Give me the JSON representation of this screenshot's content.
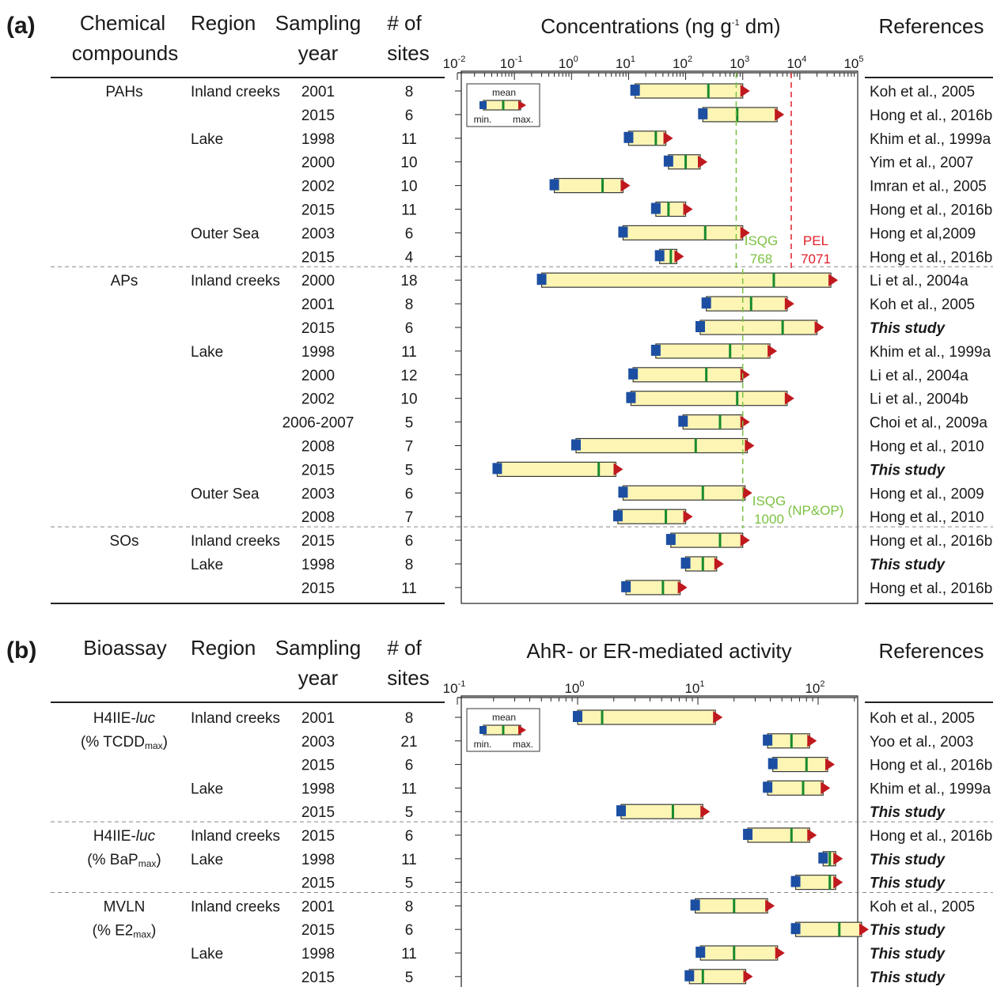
{
  "panel_a": {
    "label": "(a)",
    "headers": {
      "compounds_1": "Chemical",
      "compounds_2": "compounds",
      "region": "Region",
      "year_1": "Sampling",
      "year_2": "year",
      "sites_1": "# of",
      "sites_2": "sites",
      "axis_title": "Concentrations (ng g",
      "axis_title_sup": "-1",
      "axis_title_end": " dm)",
      "references": "References"
    },
    "axis_ticks": [
      {
        "base": "10",
        "exp": "-2"
      },
      {
        "base": "10",
        "exp": "-1"
      },
      {
        "base": "10",
        "exp": "0"
      },
      {
        "base": "10",
        "exp": "1"
      },
      {
        "base": "10",
        "exp": "2"
      },
      {
        "base": "10",
        "exp": "3"
      },
      {
        "base": "10",
        "exp": "4"
      },
      {
        "base": "10",
        "exp": "5"
      }
    ],
    "guides": {
      "isqg_pah_label": "ISQG",
      "isqg_pah_value": "768",
      "pel_label": "PEL",
      "pel_value": "7071",
      "isqg_ap_label": "ISQG",
      "isqg_ap_value": "1000",
      "isqg_ap_note": "(NP&OP)"
    },
    "legend": {
      "mean": "mean",
      "min": "min.",
      "max": "max."
    }
  },
  "panel_b": {
    "label": "(b)",
    "headers": {
      "bioassay": "Bioassay",
      "region": "Region",
      "year_1": "Sampling",
      "year_2": "year",
      "sites_1": "# of",
      "sites_2": "sites",
      "axis_title": "AhR- or ER-mediated activity",
      "references": "References"
    },
    "axis_ticks": [
      {
        "base": "10",
        "exp": "-1"
      },
      {
        "base": "10",
        "exp": "0"
      },
      {
        "base": "10",
        "exp": "1"
      },
      {
        "base": "10",
        "exp": "2"
      }
    ],
    "legend": {
      "mean": "mean",
      "min": "min.",
      "max": "max."
    }
  },
  "chart_data": [
    {
      "type": "range",
      "title": "Concentrations (ng g-1 dm)",
      "xscale": "log",
      "xlim": [
        0.01,
        100000
      ],
      "reference_lines": [
        {
          "label": "ISQG 768",
          "value": 768,
          "color": "#7cc242",
          "applies_to": "PAHs"
        },
        {
          "label": "PEL 7071",
          "value": 7071,
          "color": "#e0202a",
          "applies_to": "PAHs"
        },
        {
          "label": "ISQG 1000 (NP&OP)",
          "value": 1000,
          "color": "#7cc242",
          "applies_to": "APs"
        }
      ],
      "groups": [
        {
          "name": "PAHs",
          "rows": [
            {
              "region": "Inland creeks",
              "year": "2001",
              "sites": "8",
              "min": 13,
              "mean": 250,
              "max": 1000,
              "ref": "Koh et al., 2005",
              "bold": false
            },
            {
              "region": "",
              "year": "2015",
              "sites": "6",
              "min": 200,
              "mean": 800,
              "max": 4000,
              "ref": "Hong et al., 2016b",
              "bold": false
            },
            {
              "region": "Lake",
              "year": "1998",
              "sites": "11",
              "min": 10,
              "mean": 30,
              "max": 45,
              "ref": "Khim et al., 1999a",
              "bold": false
            },
            {
              "region": "",
              "year": "2000",
              "sites": "10",
              "min": 50,
              "mean": 100,
              "max": 180,
              "ref": "Yim et al., 2007",
              "bold": false
            },
            {
              "region": "",
              "year": "2002",
              "sites": "10",
              "min": 0.5,
              "mean": 3.5,
              "max": 8,
              "ref": "Imran et al., 2005",
              "bold": false
            },
            {
              "region": "",
              "year": "2015",
              "sites": "11",
              "min": 30,
              "mean": 50,
              "max": 100,
              "ref": "Hong et al., 2016b",
              "bold": false
            },
            {
              "region": "Outer Sea",
              "year": "2003",
              "sites": "6",
              "min": 8,
              "mean": 220,
              "max": 1000,
              "ref": "Hong et al,2009",
              "bold": false
            },
            {
              "region": "",
              "year": "2015",
              "sites": "4",
              "min": 35,
              "mean": 55,
              "max": 70,
              "ref": "Hong et al., 2016b",
              "bold": false
            }
          ]
        },
        {
          "name": "APs",
          "rows": [
            {
              "region": "Inland creeks",
              "year": "2000",
              "sites": "18",
              "min": 0.3,
              "mean": 3500,
              "max": 35000,
              "ref": "Li et al., 2004a",
              "bold": false
            },
            {
              "region": "",
              "year": "2001",
              "sites": "8",
              "min": 230,
              "mean": 1400,
              "max": 6000,
              "ref": "Koh et al., 2005",
              "bold": false
            },
            {
              "region": "",
              "year": "2015",
              "sites": "6",
              "min": 180,
              "mean": 5000,
              "max": 20000,
              "ref": "This study",
              "bold": true
            },
            {
              "region": "Lake",
              "year": "1998",
              "sites": "11",
              "min": 30,
              "mean": 600,
              "max": 3000,
              "ref": "Khim et al., 1999a",
              "bold": false
            },
            {
              "region": "",
              "year": "2000",
              "sites": "12",
              "min": 12,
              "mean": 230,
              "max": 1000,
              "ref": "Li et al., 2004a",
              "bold": false
            },
            {
              "region": "",
              "year": "2002",
              "sites": "10",
              "min": 11,
              "mean": 800,
              "max": 6000,
              "ref": "Li et al., 2004b",
              "bold": false
            },
            {
              "region": "",
              "year": "2006-2007",
              "sites": "5",
              "min": 90,
              "mean": 400,
              "max": 1000,
              "ref": "Choi et al., 2009a",
              "bold": false
            },
            {
              "region": "",
              "year": "2008",
              "sites": "7",
              "min": 1.2,
              "mean": 150,
              "max": 1200,
              "ref": "Hong et al., 2010",
              "bold": false
            },
            {
              "region": "",
              "year": "2015",
              "sites": "5",
              "min": 0.05,
              "mean": 3.0,
              "max": 6.0,
              "ref": "This study",
              "bold": true
            },
            {
              "region": "Outer Sea",
              "year": "2003",
              "sites": "6",
              "min": 8,
              "mean": 200,
              "max": 1100,
              "ref": "Hong et al., 2009",
              "bold": false
            },
            {
              "region": "",
              "year": "2008",
              "sites": "7",
              "min": 6.5,
              "mean": 45,
              "max": 100,
              "ref": "Hong et al., 2010",
              "bold": false
            }
          ]
        },
        {
          "name": "SOs",
          "rows": [
            {
              "region": "Inland creeks",
              "year": "2015",
              "sites": "6",
              "min": 55,
              "mean": 400,
              "max": 1000,
              "ref": "Hong et al., 2016b",
              "bold": false
            },
            {
              "region": "Lake",
              "year": "1998",
              "sites": "8",
              "min": 100,
              "mean": 200,
              "max": 350,
              "ref": "This study",
              "bold": true
            },
            {
              "region": "",
              "year": "2015",
              "sites": "11",
              "min": 9,
              "mean": 40,
              "max": 80,
              "ref": "Hong et al., 2016b",
              "bold": false
            }
          ]
        }
      ]
    },
    {
      "type": "range",
      "title": "AhR- or ER-mediated activity",
      "xscale": "log",
      "xlim": [
        0.1,
        300
      ],
      "groups": [
        {
          "name": "H4IIE-",
          "name_italic": "luc",
          "subname": "(% TCDD",
          "subname_sub": "max",
          "subname_end": ")",
          "rows": [
            {
              "region": "Inland creeks",
              "year": "2001",
              "sites": "8",
              "min": 1.0,
              "mean": 1.6,
              "max": 14,
              "ref": "Koh et al., 2005",
              "bold": false
            },
            {
              "region": "",
              "year": "2003",
              "sites": "21",
              "min": 38,
              "mean": 60,
              "max": 85,
              "ref": "Yoo et al., 2003",
              "bold": false
            },
            {
              "region": "",
              "year": "2015",
              "sites": "6",
              "min": 42,
              "mean": 80,
              "max": 120,
              "ref": "Hong et al., 2016b",
              "bold": false
            },
            {
              "region": "Lake",
              "year": "1998",
              "sites": "11",
              "min": 38,
              "mean": 75,
              "max": 110,
              "ref": "Khim et al., 1999a",
              "bold": false
            },
            {
              "region": "",
              "year": "2015",
              "sites": "5",
              "min": 2.3,
              "mean": 6.2,
              "max": 11,
              "ref": "This study",
              "bold": true
            }
          ]
        },
        {
          "name": "H4IIE-",
          "name_italic": "luc",
          "subname": "(% BaP",
          "subname_sub": "max",
          "subname_end": ")",
          "rows": [
            {
              "region": "Inland creeks",
              "year": "2015",
              "sites": "6",
              "min": 26,
              "mean": 60,
              "max": 85,
              "ref": "Hong et al., 2016b",
              "bold": false
            },
            {
              "region": "Lake",
              "year": "1998",
              "sites": "11",
              "min": 110,
              "mean": 125,
              "max": 140,
              "ref": "This study",
              "bold": true
            },
            {
              "region": "",
              "year": "2015",
              "sites": "5",
              "min": 65,
              "mean": 125,
              "max": 140,
              "ref": "This study",
              "bold": true
            }
          ]
        },
        {
          "name": "MVLN",
          "name_italic": "",
          "subname": "(% E2",
          "subname_sub": "max",
          "subname_end": ")",
          "rows": [
            {
              "region": "Inland creeks",
              "year": "2001",
              "sites": "8",
              "min": 9.5,
              "mean": 20,
              "max": 38,
              "ref": "Koh et al., 2005",
              "bold": false
            },
            {
              "region": "",
              "year": "2015",
              "sites": "6",
              "min": 65,
              "mean": 150,
              "max": 230,
              "ref": "This study",
              "bold": true
            },
            {
              "region": "Lake",
              "year": "1998",
              "sites": "11",
              "min": 10.5,
              "mean": 20,
              "max": 46,
              "ref": "This study",
              "bold": true
            },
            {
              "region": "",
              "year": "2015",
              "sites": "5",
              "min": 8.5,
              "mean": 11,
              "max": 25,
              "ref": "This study",
              "bold": true
            }
          ]
        }
      ]
    }
  ]
}
